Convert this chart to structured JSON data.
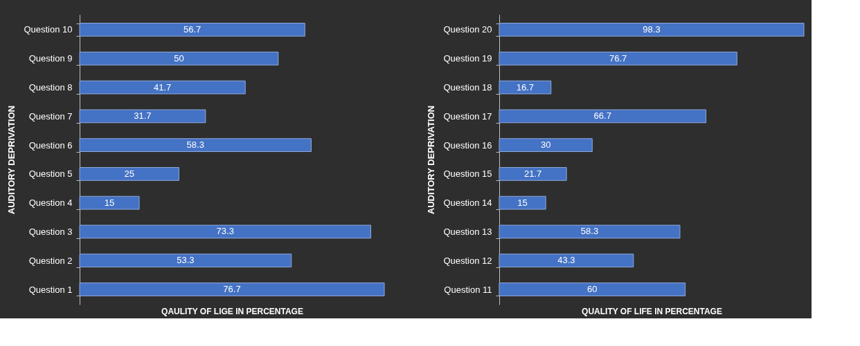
{
  "chart_data": [
    {
      "type": "bar",
      "orientation": "horizontal",
      "ylabel": "AUDITORY DEPRIVATION",
      "xlabel": "QAULITY OF LIGE IN PERCENTAGE",
      "categories": [
        "Question 10",
        "Question 9",
        "Question 8",
        "Question 7",
        "Question 6",
        "Question 5",
        "Question 4",
        "Question 3",
        "Question 2",
        "Question 1"
      ],
      "values": [
        56.7,
        50,
        41.7,
        31.7,
        58.3,
        25,
        15,
        73.3,
        53.3,
        76.7
      ],
      "color": "#4472c4",
      "data_labels": true,
      "tick_labels": "y"
    },
    {
      "type": "bar",
      "orientation": "horizontal",
      "ylabel": "AUDITORY DEPRIVATION",
      "xlabel": "QUALITY OF LIFE IN PERCENTAGE",
      "categories": [
        "Question 20",
        "Question 19",
        "Question 18",
        "Question 17",
        "Question 16",
        "Question 15",
        "Question 14",
        "Question 13",
        "Question 12",
        "Question 11"
      ],
      "values": [
        98.3,
        76.7,
        16.7,
        66.7,
        30,
        21.7,
        15,
        58.3,
        43.3,
        60
      ],
      "color": "#4472c4",
      "data_labels": true,
      "tick_labels": "y"
    }
  ]
}
